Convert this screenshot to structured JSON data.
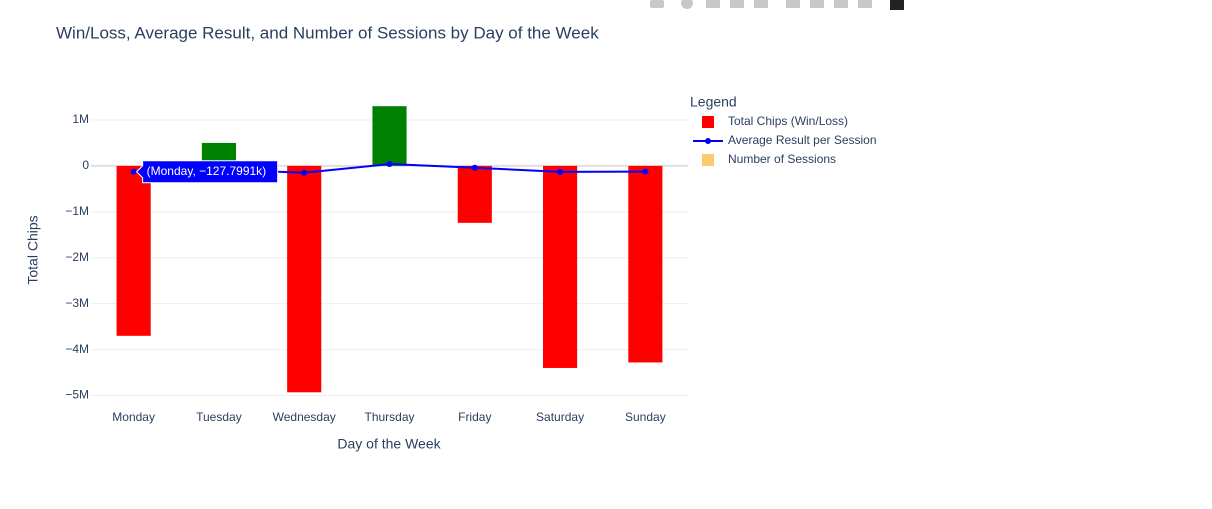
{
  "chart_data": {
    "type": "bar",
    "title": "Win/Loss, Average Result, and Number of Sessions by Day of the Week",
    "x_label": "Day of the Week",
    "y_label": "Total Chips",
    "legend_title": "Legend",
    "hover_label": "(Monday, −127.7991k)",
    "categories": [
      "Monday",
      "Tuesday",
      "Wednesday",
      "Thursday",
      "Friday",
      "Saturday",
      "Sunday"
    ],
    "series": [
      {
        "name": "Total Chips (Win/Loss)",
        "type": "bar",
        "color": "#ff0000",
        "colors": [
          "#ff0000",
          "#008000",
          "#ff0000",
          "#008000",
          "#ff0000",
          "#ff0000",
          "#ff0000"
        ],
        "values": [
          -3700000,
          500000,
          -4930000,
          1300000,
          -1240000,
          -4400000,
          -4280000
        ]
      },
      {
        "name": "Average Result per Session",
        "type": "line",
        "color": "#0000ff",
        "values": [
          -127799.1,
          -80000,
          -150000,
          40000,
          -40000,
          -130000,
          -125000
        ]
      },
      {
        "name": "Number of Sessions",
        "type": "bar",
        "color": "#fdca6a",
        "values": [
          null,
          null,
          null,
          null,
          null,
          null,
          null
        ]
      }
    ],
    "ylim": [
      -5250000,
      1500000
    ],
    "yticks": [
      {
        "value": 1000000,
        "label": "1M"
      },
      0,
      {
        "value": -1000000,
        "label": "−1M"
      },
      {
        "value": -2000000,
        "label": "−2M"
      },
      {
        "value": -3000000,
        "label": "−3M"
      },
      {
        "value": -4000000,
        "label": "−4M"
      },
      {
        "value": -5000000,
        "label": "−5M"
      }
    ],
    "grid": true
  }
}
